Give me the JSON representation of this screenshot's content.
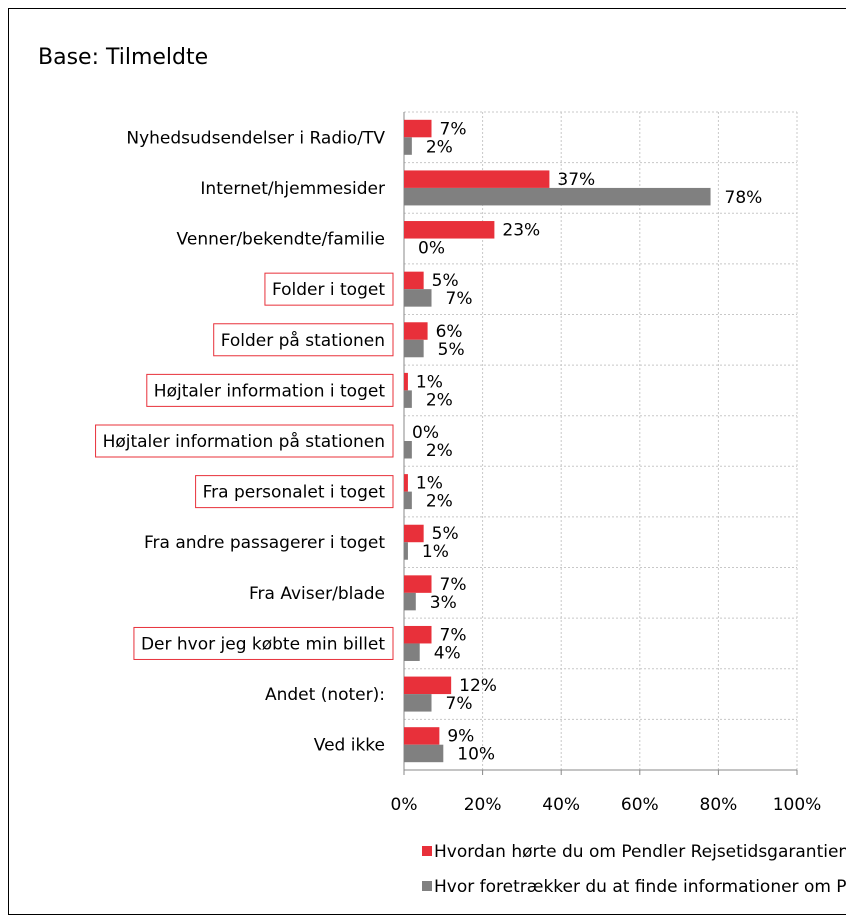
{
  "chart_data": {
    "type": "hbar",
    "title": "Base: Tilmeldte",
    "categories": [
      "Nyhedsudsendelser i Radio/TV",
      "Internet/hjemmesider",
      "Venner/bekendte/familie",
      "Folder i toget",
      "Folder på stationen",
      "Højtaler information i toget",
      "Højtaler information på stationen",
      "Fra personalet i toget",
      "Fra andre passagerer i toget",
      "Fra Aviser/blade",
      "Der hvor jeg købte min billet",
      "Andet (noter):",
      "Ved ikke"
    ],
    "highlight": [
      false,
      false,
      false,
      true,
      true,
      true,
      true,
      true,
      false,
      false,
      true,
      false,
      false
    ],
    "highlight_color": "#e8303a",
    "series": [
      {
        "name": "Hvordan hørte du om Pendler Rejsetidsgarantien?",
        "color": "#e8303a",
        "values": [
          7,
          37,
          23,
          5,
          6,
          1,
          0,
          1,
          5,
          7,
          7,
          12,
          9
        ],
        "value_labels": [
          "7%",
          "37%",
          "23%",
          "5%",
          "6%",
          "1%",
          "0%",
          "1%",
          "5%",
          "7%",
          "7%",
          "12%",
          "9%"
        ]
      },
      {
        "name": "Hvor foretrækker du at finde informationer om Pendler Rejsetidsgarantien?",
        "color": "#808080",
        "values": [
          2,
          78,
          0,
          7,
          5,
          2,
          2,
          2,
          1,
          3,
          4,
          7,
          10
        ],
        "value_labels": [
          "2%",
          "78%",
          "0%",
          "7%",
          "5%",
          "2%",
          "2%",
          "2%",
          "1%",
          "3%",
          "4%",
          "7%",
          "10%"
        ]
      }
    ],
    "xlim": [
      0,
      100
    ],
    "xticks": [
      {
        "value": 0,
        "label": "0%"
      },
      {
        "value": 20,
        "label": "20%"
      },
      {
        "value": 40,
        "label": "40%"
      },
      {
        "value": 60,
        "label": "60%"
      },
      {
        "value": 80,
        "label": "80%"
      },
      {
        "value": 100,
        "label": "100%"
      }
    ],
    "grid": true
  }
}
